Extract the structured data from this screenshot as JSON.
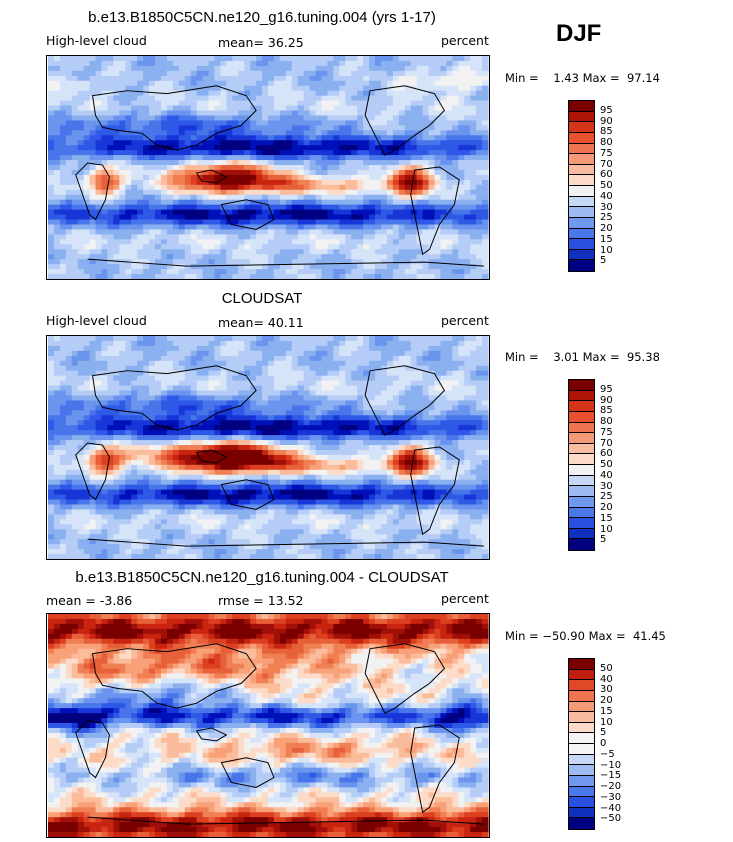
{
  "season": "DJF",
  "panels": [
    {
      "title": "b.e13.B1850C5CN.ne120_g16.tuning.004 (yrs 1-17)",
      "left_label": "High-level cloud",
      "center_label": "mean=  36.25",
      "right_label": "percent",
      "minmax": "Min =    1.43 Max =  97.14",
      "map_type": "abs",
      "legend_labels": [
        "95",
        "90",
        "85",
        "80",
        "75",
        "70",
        "60",
        "50",
        "40",
        "30",
        "25",
        "20",
        "15",
        "10",
        "5"
      ]
    },
    {
      "title": "CLOUDSAT",
      "left_label": "High-level cloud",
      "center_label": "mean=  40.11",
      "right_label": "percent",
      "minmax": "Min =    3.01 Max =  95.38",
      "map_type": "abs2",
      "legend_labels": [
        "95",
        "90",
        "85",
        "80",
        "75",
        "70",
        "60",
        "50",
        "40",
        "30",
        "25",
        "20",
        "15",
        "10",
        "5"
      ]
    },
    {
      "title": "b.e13.B1850C5CN.ne120_g16.tuning.004 - CLOUDSAT",
      "left_label": "mean =   -3.86",
      "center_label": "rmse =  13.52",
      "right_label": "percent",
      "minmax": "Min = −50.90 Max =  41.45",
      "map_type": "diff",
      "legend_labels": [
        "50",
        "40",
        "30",
        "20",
        "15",
        "10",
        "5",
        "0",
        "−5",
        "−10",
        "−15",
        "−20",
        "−30",
        "−40",
        "−50"
      ]
    }
  ],
  "colors": {
    "scale": [
      "#000080",
      "#0010b8",
      "#1836d8",
      "#2e58e6",
      "#4876ea",
      "#6a94ee",
      "#8ab0f0",
      "#b4ccf6",
      "#d6e4fa",
      "#f2f2f2",
      "#fcdcc8",
      "#fbbc9c",
      "#f8a078",
      "#f08054",
      "#e8603a",
      "#dc4020",
      "#c82410",
      "#a01008",
      "#7a0000"
    ],
    "abs_bar": [
      "#7a0000",
      "#b01408",
      "#d43418",
      "#e85030",
      "#f07450",
      "#f59a78",
      "#f8bca0",
      "#fcdcc8",
      "#f2f2f2",
      "#c6d8f6",
      "#9cbcf2",
      "#7098ee",
      "#4a78ea",
      "#2a50e0",
      "#1030c0",
      "#000080"
    ],
    "diff_bar": [
      "#7a0000",
      "#c01e10",
      "#e04828",
      "#f07450",
      "#f59a78",
      "#f8bca0",
      "#fcdcc8",
      "#f4f4f4",
      "#f4f4f4",
      "#c6d8f6",
      "#9cbcf2",
      "#7098ee",
      "#4a78ea",
      "#2a50e0",
      "#1030c0",
      "#000080"
    ]
  }
}
